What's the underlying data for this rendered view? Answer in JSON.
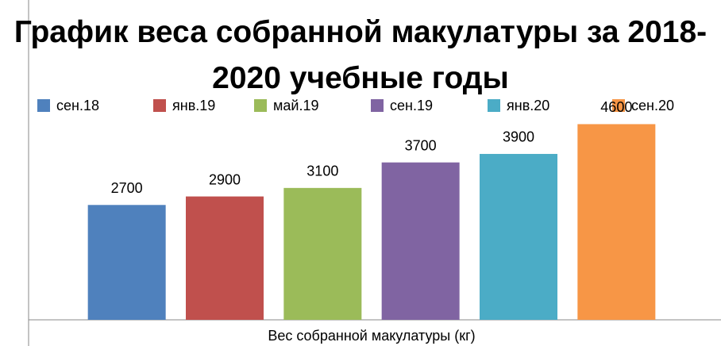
{
  "chart_data": {
    "type": "bar",
    "title": "График веса собранной макулатуры за 2018-2020 учебные годы",
    "categories": [
      "Вес собранной макулатуры (кг)"
    ],
    "series": [
      {
        "name": "сен.18",
        "color": "#4f81bd",
        "values": [
          2700
        ]
      },
      {
        "name": "янв.19",
        "color": "#c0504d",
        "values": [
          2900
        ]
      },
      {
        "name": "май.19",
        "color": "#9bbb59",
        "values": [
          3100
        ]
      },
      {
        "name": "сен.19",
        "color": "#8064a2",
        "values": [
          3700
        ]
      },
      {
        "name": "янв.20",
        "color": "#4bacc6",
        "values": [
          3900
        ]
      },
      {
        "name": "сен.20",
        "color": "#f79646",
        "values": [
          4600
        ]
      }
    ],
    "ylim": [
      0,
      5000
    ],
    "legend": "top"
  }
}
